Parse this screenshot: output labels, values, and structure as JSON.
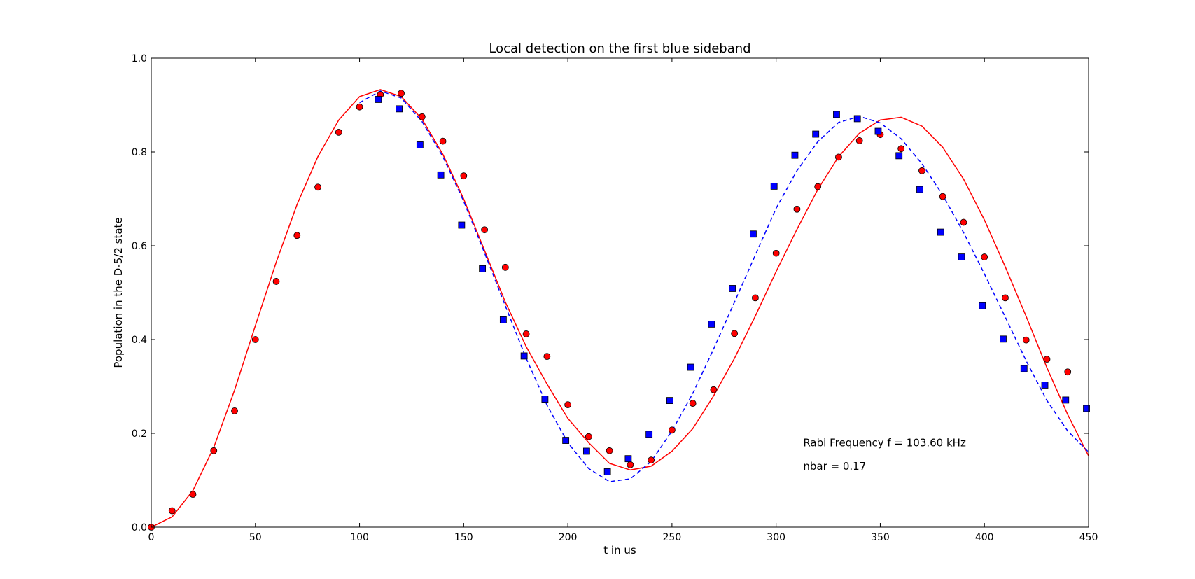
{
  "chart_data": {
    "type": "scatter",
    "title": "Local detection on the first blue sideband",
    "xlabel": "t in us",
    "ylabel": "Population in the D-5/2 state",
    "xlim": [
      0,
      450
    ],
    "ylim": [
      0,
      1.0
    ],
    "xticks": [
      "0",
      "50",
      "100",
      "150",
      "200",
      "250",
      "300",
      "350",
      "400",
      "450"
    ],
    "yticks": [
      "0.0",
      "0.2",
      "0.4",
      "0.6",
      "0.8",
      "1.0"
    ],
    "grid": false,
    "annotations": [
      "Rabi Frequency f = 103.60 kHz",
      "nbar = 0.17"
    ],
    "series": [
      {
        "style": "red-circles",
        "color": "#ff0000",
        "x": [
          0,
          10,
          20,
          30,
          40,
          50,
          60,
          70,
          80,
          90,
          100,
          110,
          120,
          130,
          140,
          150,
          160,
          170,
          180,
          190,
          200,
          210,
          220,
          230,
          240,
          250,
          260,
          270,
          280,
          290,
          300,
          310,
          320,
          330,
          340,
          350,
          360,
          370,
          380,
          390,
          400,
          410,
          420,
          430,
          440
        ],
        "values": [
          0.0,
          0.035,
          0.07,
          0.163,
          0.248,
          0.4,
          0.524,
          0.622,
          0.725,
          0.842,
          0.896,
          0.922,
          0.925,
          0.875,
          0.823,
          0.749,
          0.634,
          0.554,
          0.412,
          0.364,
          0.261,
          0.193,
          0.163,
          0.133,
          0.143,
          0.207,
          0.264,
          0.293,
          0.413,
          0.489,
          0.584,
          0.678,
          0.726,
          0.789,
          0.824,
          0.837,
          0.807,
          0.76,
          0.705,
          0.65,
          0.576,
          0.489,
          0.399,
          0.358,
          0.331
        ]
      },
      {
        "style": "blue-squares",
        "color": "#0000ff",
        "x": [
          109,
          119,
          129,
          139,
          149,
          159,
          169,
          179,
          189,
          199,
          209,
          219,
          229,
          239,
          249,
          259,
          269,
          279,
          289,
          299,
          309,
          319,
          329,
          339,
          349,
          359,
          369,
          379,
          389,
          399,
          409,
          419,
          429,
          439,
          449
        ],
        "values": [
          0.912,
          0.892,
          0.815,
          0.751,
          0.644,
          0.551,
          0.442,
          0.365,
          0.273,
          0.185,
          0.162,
          0.118,
          0.146,
          0.198,
          0.27,
          0.341,
          0.433,
          0.509,
          0.625,
          0.727,
          0.793,
          0.838,
          0.88,
          0.871,
          0.844,
          0.792,
          0.72,
          0.629,
          0.576,
          0.472,
          0.401,
          0.338,
          0.303,
          0.271,
          0.253
        ]
      },
      {
        "style": "red-solid-line",
        "color": "#ff0000",
        "x": [
          0,
          10,
          20,
          30,
          40,
          50,
          60,
          70,
          80,
          90,
          100,
          110,
          120,
          130,
          140,
          150,
          160,
          170,
          180,
          190,
          200,
          210,
          220,
          230,
          240,
          250,
          260,
          270,
          280,
          290,
          300,
          310,
          320,
          330,
          340,
          350,
          360,
          370,
          380,
          390,
          400,
          410,
          420,
          430,
          440,
          450
        ],
        "values": [
          0.0,
          0.022,
          0.078,
          0.17,
          0.292,
          0.43,
          0.565,
          0.688,
          0.79,
          0.868,
          0.918,
          0.933,
          0.918,
          0.87,
          0.795,
          0.7,
          0.59,
          0.48,
          0.385,
          0.305,
          0.232,
          0.18,
          0.136,
          0.122,
          0.13,
          0.162,
          0.21,
          0.28,
          0.36,
          0.45,
          0.545,
          0.635,
          0.72,
          0.79,
          0.84,
          0.868,
          0.874,
          0.855,
          0.81,
          0.742,
          0.655,
          0.555,
          0.45,
          0.34,
          0.24,
          0.152
        ]
      },
      {
        "style": "blue-dashed-line",
        "color": "#0000ff",
        "x": [
          100,
          110,
          120,
          130,
          140,
          150,
          160,
          170,
          180,
          190,
          200,
          210,
          220,
          230,
          240,
          250,
          260,
          270,
          280,
          290,
          300,
          310,
          320,
          330,
          340,
          350,
          360,
          370,
          380,
          390,
          400,
          410,
          420,
          430,
          440,
          450
        ],
        "values": [
          0.905,
          0.93,
          0.915,
          0.865,
          0.79,
          0.695,
          0.585,
          0.472,
          0.36,
          0.26,
          0.18,
          0.125,
          0.097,
          0.103,
          0.14,
          0.205,
          0.285,
          0.38,
          0.48,
          0.58,
          0.68,
          0.76,
          0.822,
          0.863,
          0.876,
          0.862,
          0.828,
          0.775,
          0.708,
          0.628,
          0.54,
          0.448,
          0.355,
          0.27,
          0.205,
          0.16
        ]
      }
    ]
  }
}
